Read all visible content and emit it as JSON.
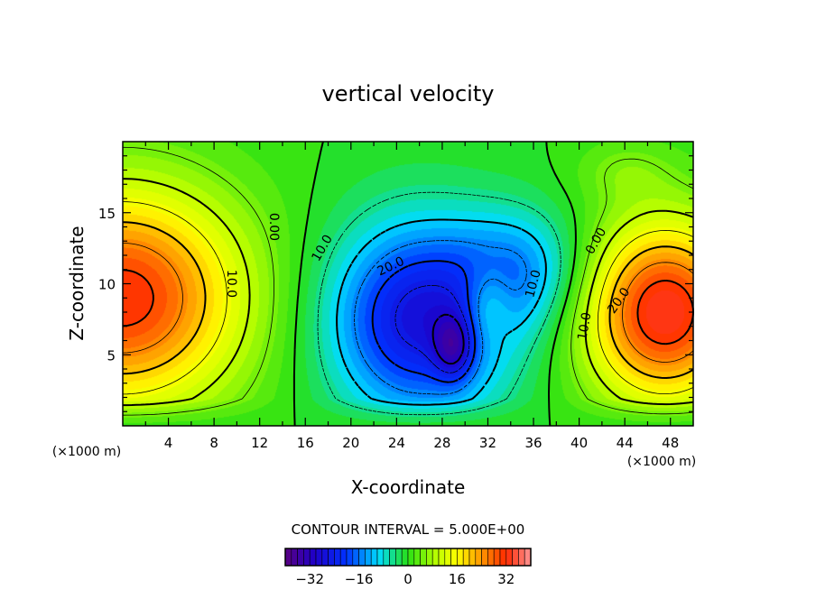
{
  "chart_data": {
    "type": "contour",
    "title": "vertical velocity",
    "xlabel": "X-coordinate",
    "ylabel": "Z-coordinate",
    "x_unit_label": "(×1000 m)",
    "z_unit_label": "(×1000 m)",
    "xlim": [
      0,
      50
    ],
    "ylim": [
      0,
      20
    ],
    "xticks": [
      4,
      8,
      12,
      16,
      20,
      24,
      28,
      32,
      36,
      40,
      44,
      48
    ],
    "yticks": [
      5,
      10,
      15
    ],
    "contour_interval_text": "CONTOUR INTERVAL = 5.000E+00",
    "contour_interval": 5,
    "negative_contours": "dashed",
    "colorbar": {
      "range": [
        -40,
        40
      ],
      "ticks": [
        "-32",
        "-16",
        "0",
        "16",
        "32"
      ],
      "tick_values": [
        -32,
        -16,
        0,
        16,
        32
      ]
    },
    "contour_labels": [
      "0.00",
      "10.0",
      "10.0",
      "20.0",
      "10.0",
      "0.00",
      "10.0",
      "20.0"
    ],
    "field_features": [
      {
        "x": 0,
        "z": 9,
        "value": 32,
        "sx": 7.5,
        "sz": 5.5
      },
      {
        "x": 47.5,
        "z": 8,
        "value": 34,
        "sx": 5,
        "sz": 4.5
      },
      {
        "x": 26,
        "z": 7.5,
        "value": -27,
        "sx": 5.5,
        "sz": 4.8
      },
      {
        "x": 29,
        "z": 5.5,
        "value": -14,
        "sx": 1.2,
        "sz": 1.6
      },
      {
        "x": 35,
        "z": 11,
        "value": -12,
        "sx": 4,
        "sz": 3
      },
      {
        "x": 32,
        "z": 8.5,
        "value": 9,
        "sx": 1.5,
        "sz": 2
      },
      {
        "x": 44,
        "z": 18,
        "value": 4,
        "sx": 3,
        "sz": 1.5
      }
    ]
  }
}
